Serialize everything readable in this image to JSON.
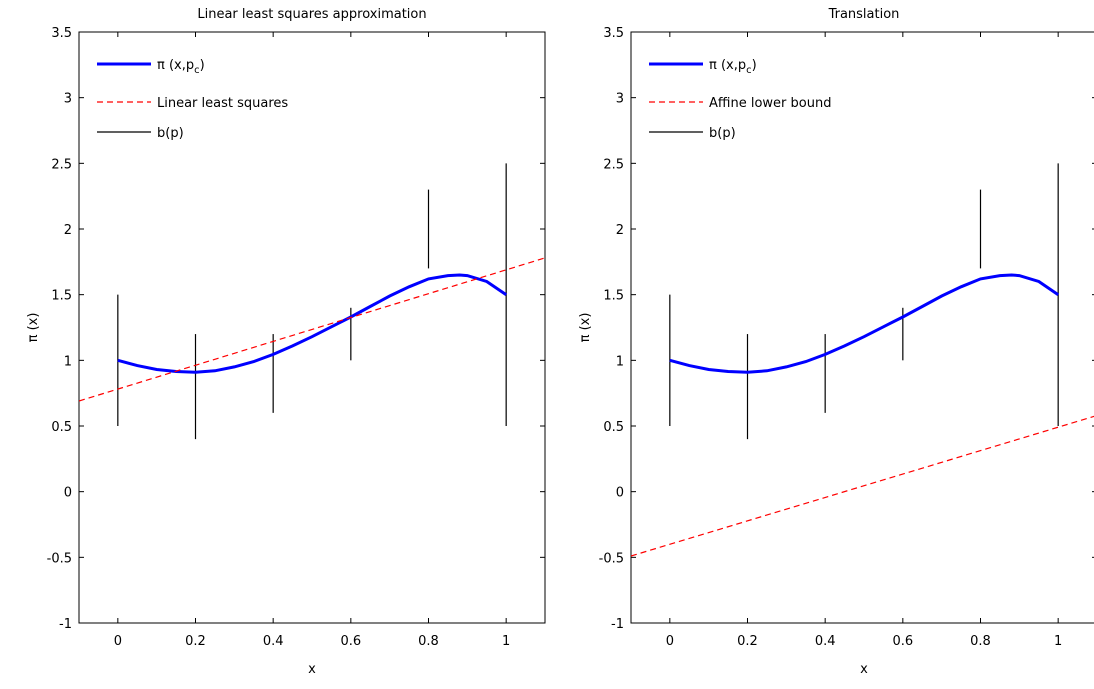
{
  "chart_data": [
    {
      "type": "line",
      "title": "Linear least squares approximation",
      "xlabel": "x",
      "ylabel": "π (x)",
      "xlim": [
        -0.1,
        1.1
      ],
      "ylim": [
        -1,
        3.5
      ],
      "xticks": [
        0,
        0.2,
        0.4,
        0.6,
        0.8,
        1
      ],
      "xtick_labels": [
        "0",
        "0.2",
        "0.4",
        "0.6",
        "0.8",
        "1"
      ],
      "yticks": [
        -1,
        -0.5,
        0,
        0.5,
        1,
        1.5,
        2,
        2.5,
        3,
        3.5
      ],
      "ytick_labels": [
        "-1",
        "-0.5",
        "0",
        "0.5",
        "1",
        "1.5",
        "2",
        "2.5",
        "3",
        "3.5"
      ],
      "grid": false,
      "legend_placement": "top-left",
      "series": [
        {
          "name": "π (x,p_c)",
          "legend_main": "π (x,p",
          "legend_sub": "c",
          "legend_tail": ")",
          "style": "solid",
          "color": "#0000ff",
          "x": [
            0,
            0.05,
            0.1,
            0.15,
            0.2,
            0.25,
            0.3,
            0.35,
            0.4,
            0.45,
            0.5,
            0.55,
            0.6,
            0.65,
            0.7,
            0.75,
            0.8,
            0.85,
            0.88,
            0.9,
            0.95,
            1
          ],
          "y": [
            1.0,
            0.96,
            0.93,
            0.915,
            0.91,
            0.92,
            0.95,
            0.99,
            1.045,
            1.11,
            1.18,
            1.255,
            1.33,
            1.41,
            1.49,
            1.56,
            1.62,
            1.645,
            1.65,
            1.645,
            1.6,
            1.5
          ]
        },
        {
          "name": "Linear least squares",
          "style": "dashed",
          "color": "#ff0000",
          "x": [
            -0.1,
            1.1
          ],
          "y": [
            0.69,
            1.78
          ]
        }
      ],
      "error_bars": {
        "name": "b(p)",
        "color": "#000000",
        "x": [
          0,
          0.2,
          0.4,
          0.6,
          0.8,
          1
        ],
        "low": [
          0.5,
          0.4,
          0.6,
          1.0,
          1.7,
          0.5
        ],
        "high": [
          1.5,
          1.2,
          1.2,
          1.4,
          2.3,
          2.5
        ]
      }
    },
    {
      "type": "line",
      "title": "Translation",
      "xlabel": "x",
      "ylabel": "π (x)",
      "xlim": [
        -0.1,
        1.1
      ],
      "ylim": [
        -1,
        3.5
      ],
      "xticks": [
        0,
        0.2,
        0.4,
        0.6,
        0.8,
        1
      ],
      "xtick_labels": [
        "0",
        "0.2",
        "0.4",
        "0.6",
        "0.8",
        "1"
      ],
      "yticks": [
        -1,
        -0.5,
        0,
        0.5,
        1,
        1.5,
        2,
        2.5,
        3,
        3.5
      ],
      "ytick_labels": [
        "-1",
        "-0.5",
        "0",
        "0.5",
        "1",
        "1.5",
        "2",
        "2.5",
        "3",
        "3.5"
      ],
      "grid": false,
      "legend_placement": "top-left",
      "series": [
        {
          "name": "π (x,p_c)",
          "legend_main": "π (x,p",
          "legend_sub": "c",
          "legend_tail": ")",
          "style": "solid",
          "color": "#0000ff",
          "x": [
            0,
            0.05,
            0.1,
            0.15,
            0.2,
            0.25,
            0.3,
            0.35,
            0.4,
            0.45,
            0.5,
            0.55,
            0.6,
            0.65,
            0.7,
            0.75,
            0.8,
            0.85,
            0.88,
            0.9,
            0.95,
            1
          ],
          "y": [
            1.0,
            0.96,
            0.93,
            0.915,
            0.91,
            0.92,
            0.95,
            0.99,
            1.045,
            1.11,
            1.18,
            1.255,
            1.33,
            1.41,
            1.49,
            1.56,
            1.62,
            1.645,
            1.65,
            1.645,
            1.6,
            1.5
          ]
        },
        {
          "name": "Affine lower bound",
          "style": "dashed",
          "color": "#ff0000",
          "x": [
            -0.1,
            1.1
          ],
          "y": [
            -0.49,
            0.58
          ]
        }
      ],
      "error_bars": {
        "name": "b(p)",
        "color": "#000000",
        "x": [
          0,
          0.2,
          0.4,
          0.6,
          0.8,
          1
        ],
        "low": [
          0.5,
          0.4,
          0.6,
          1.0,
          1.7,
          0.5
        ],
        "high": [
          1.5,
          1.2,
          1.2,
          1.4,
          2.3,
          2.5
        ]
      }
    }
  ]
}
